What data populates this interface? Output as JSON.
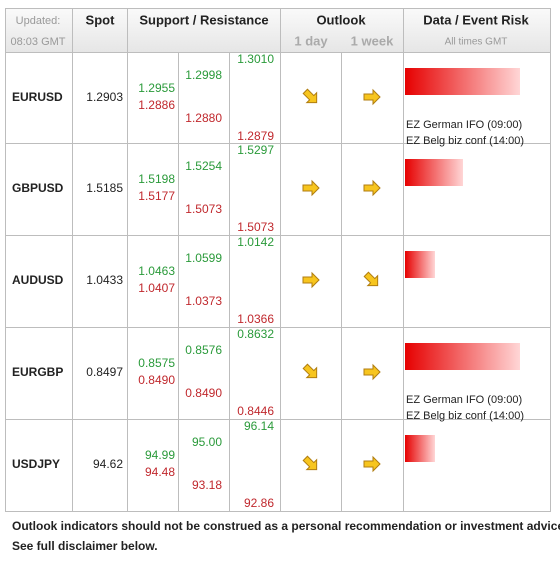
{
  "header": {
    "updated_label": "Updated:",
    "updated_time": "08:03 GMT",
    "spot": "Spot",
    "levels": "Support / Resistance",
    "outlook": "Outlook",
    "day": "1 day",
    "week": "1 week",
    "events": "Data / Event Risk",
    "events_note": "All times GMT"
  },
  "table": {
    "rows": [
      {
        "pair": "EURUSD",
        "spot": "1.2903",
        "levels": [
          [
            "1.2955",
            "1.2886"
          ],
          [
            "1.2998",
            "1.2880"
          ],
          [
            "1.3010",
            "1.2879"
          ]
        ],
        "events": [
          "EZ German IFO (09:00)",
          "EZ Belg biz conf (14:00)"
        ]
      },
      {
        "pair": "GBPUSD",
        "spot": "1.5185",
        "levels": [
          [
            "1.5198",
            "1.5177"
          ],
          [
            "1.5254",
            "1.5073"
          ],
          [
            "1.5297",
            "1.5073"
          ]
        ],
        "events": []
      },
      {
        "pair": "AUDUSD",
        "spot": "1.0433",
        "levels": [
          [
            "1.0463",
            "1.0407"
          ],
          [
            "1.0599",
            "1.0373"
          ],
          [
            "1.0142",
            "1.0366"
          ]
        ],
        "events": []
      },
      {
        "pair": "EURGBP",
        "spot": "0.8497",
        "levels": [
          [
            "0.8575",
            "0.8490"
          ],
          [
            "0.8576",
            "0.8490"
          ],
          [
            "0.8632",
            "0.8446"
          ]
        ],
        "events": [
          "EZ German IFO (09:00)",
          "EZ Belg biz conf (14:00)"
        ]
      },
      {
        "pair": "USDJPY",
        "spot": "94.62",
        "levels": [
          [
            "94.99",
            "94.48"
          ],
          [
            "95.00",
            "93.18"
          ],
          [
            "96.14",
            "92.86"
          ]
        ],
        "events": []
      }
    ]
  },
  "footer": {
    "lines": [
      "Outlook indicators should not be construed as a personal recommendation or investment advice.",
      "See full disclaimer below."
    ]
  }
}
